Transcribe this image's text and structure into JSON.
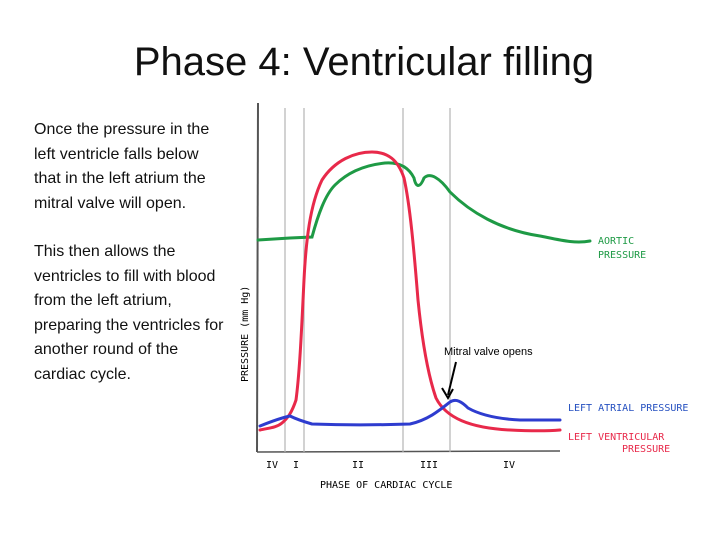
{
  "slide": {
    "title": "Phase 4: Ventricular filling",
    "paragraphs": [
      "Once the pressure in the left ventricle falls below that in the left atrium the mitral valve will open.",
      "This then allows the ventricles to fill with blood from the left atrium, preparing the ventricles for another round of the cardiac cycle."
    ]
  },
  "diagram": {
    "annotation": "Mitral valve opens",
    "y_axis_label": "PRESSURE (mm Hg)",
    "x_axis_label": "PHASE OF CARDIAC CYCLE",
    "phases": [
      "IV",
      "I",
      "II",
      "III",
      "IV"
    ],
    "curves": {
      "aortic": {
        "label_line1": "AORTIC",
        "label_line2": "PRESSURE",
        "color": "#1e9a45"
      },
      "atrial": {
        "label": "LEFT ATRIAL PRESSURE",
        "color": "#2e3ccf"
      },
      "ventricular": {
        "label_line1": "LEFT VENTRICULAR",
        "label_line2": "PRESSURE",
        "color": "#e8294a"
      }
    },
    "label_color": "#2550c0"
  }
}
